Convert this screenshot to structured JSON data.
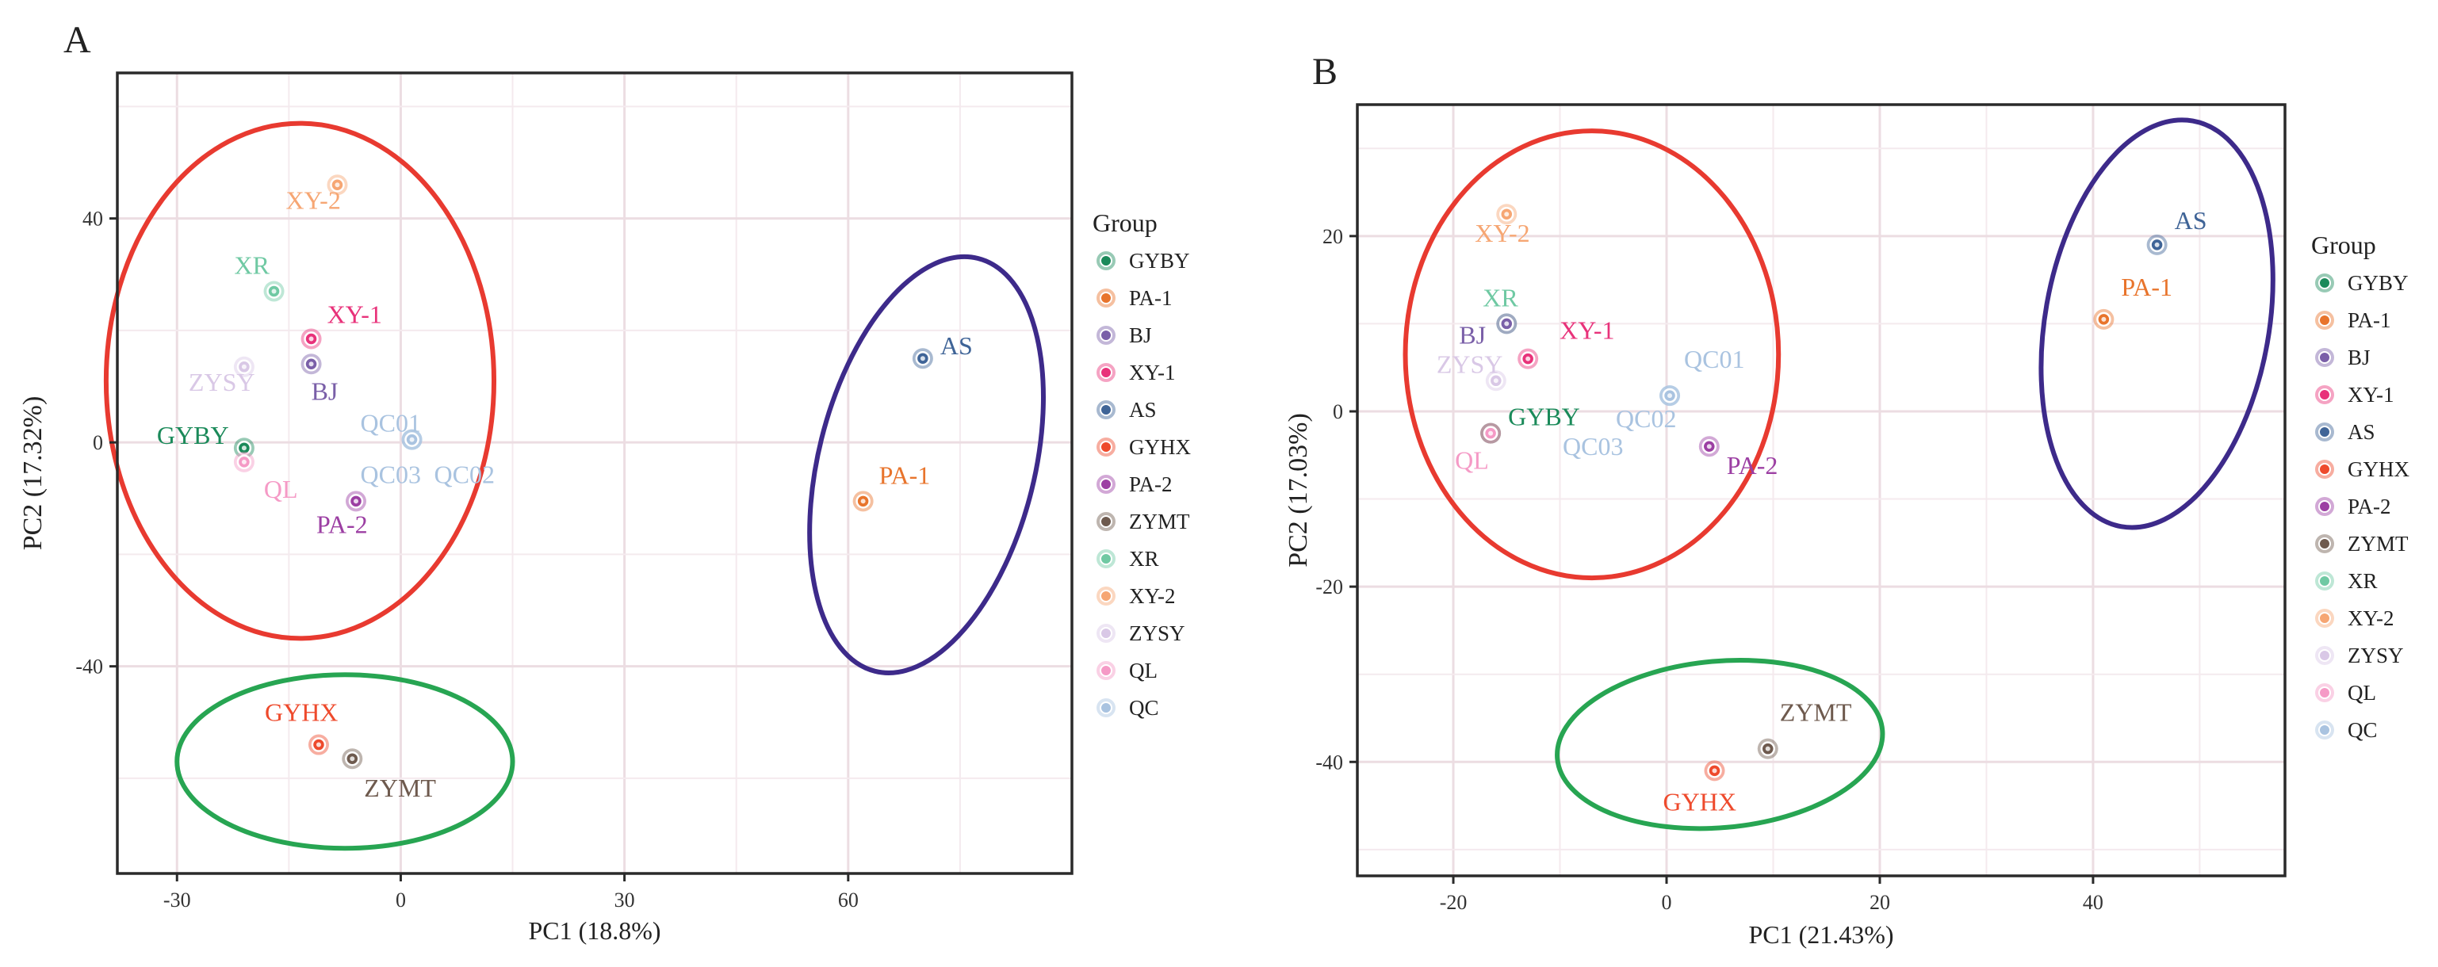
{
  "chart_data": [
    {
      "panel": "A",
      "type": "scatter",
      "xlabel": "PC1 (18.8%)",
      "ylabel": "PC2 (17.32%)",
      "xlim": [
        -38,
        90
      ],
      "ylim": [
        -77,
        66
      ],
      "xticks": [
        -30,
        0,
        30,
        60
      ],
      "yticks": [
        -40,
        0,
        40
      ],
      "grid": true,
      "legend_title": "Group",
      "legend": [
        "GYBY",
        "PA-1",
        "BJ",
        "XY-1",
        "AS",
        "GYHX",
        "PA-2",
        "ZYMT",
        "XR",
        "XY-2",
        "ZYSY",
        "QL",
        "QC"
      ],
      "points": [
        {
          "group": "GYBY",
          "label": "GYBY",
          "x": -21,
          "y": -1
        },
        {
          "group": "XR",
          "label": "XR",
          "x": -17,
          "y": 27
        },
        {
          "group": "XY-2",
          "label": "XY-2",
          "x": -8.5,
          "y": 46
        },
        {
          "group": "XY-1",
          "label": "XY-1",
          "x": -12,
          "y": 18.5
        },
        {
          "group": "BJ",
          "label": "BJ",
          "x": -12,
          "y": 14
        },
        {
          "group": "ZYSY",
          "label": "ZYSY",
          "x": -21,
          "y": 13.5
        },
        {
          "group": "QL",
          "label": "QL",
          "x": -21,
          "y": -3.5
        },
        {
          "group": "PA-2",
          "label": "PA-2",
          "x": -6,
          "y": -10.5
        },
        {
          "group": "QC",
          "label": "QC01",
          "x": 1.5,
          "y": 0.5
        },
        {
          "group": "QC",
          "label": "QC02",
          "x": 1.5,
          "y": 0.5
        },
        {
          "group": "QC",
          "label": "QC03",
          "x": 1.5,
          "y": 0.5
        },
        {
          "group": "AS",
          "label": "AS",
          "x": 70,
          "y": 15
        },
        {
          "group": "PA-1",
          "label": "PA-1",
          "x": 62,
          "y": -10.5
        },
        {
          "group": "GYHX",
          "label": "GYHX",
          "x": -11,
          "y": -54
        },
        {
          "group": "ZYMT",
          "label": "ZYMT",
          "x": -6.5,
          "y": -56.5
        }
      ]
    },
    {
      "panel": "B",
      "type": "scatter",
      "xlabel": "PC1 (21.43%)",
      "ylabel": "PC2 (17.03%)",
      "xlim": [
        -29,
        58
      ],
      "ylim": [
        -53,
        35
      ],
      "xticks": [
        -20,
        0,
        20,
        40
      ],
      "yticks": [
        -40,
        -20,
        0,
        20
      ],
      "grid": true,
      "legend_title": "Group",
      "legend": [
        "GYBY",
        "PA-1",
        "BJ",
        "XY-1",
        "AS",
        "GYHX",
        "PA-2",
        "ZYMT",
        "XR",
        "XY-2",
        "ZYSY",
        "QL",
        "QC"
      ],
      "points": [
        {
          "group": "XY-2",
          "label": "XY-2",
          "x": -15,
          "y": 22.5
        },
        {
          "group": "XR",
          "label": "XR",
          "x": -15,
          "y": 10
        },
        {
          "group": "BJ",
          "label": "BJ",
          "x": -15,
          "y": 10
        },
        {
          "group": "XY-1",
          "label": "XY-1",
          "x": -13,
          "y": 6
        },
        {
          "group": "ZYSY",
          "label": "ZYSY",
          "x": -16,
          "y": 3.5
        },
        {
          "group": "GYBY",
          "label": "GYBY",
          "x": -16.5,
          "y": -2.5
        },
        {
          "group": "ZYMT",
          "label": "",
          "x": -16.5,
          "y": -2.5
        },
        {
          "group": "QL",
          "label": "QL",
          "x": -16.5,
          "y": -2.5
        },
        {
          "group": "QC",
          "label": "QC01",
          "x": 0.3,
          "y": 1.8
        },
        {
          "group": "QC",
          "label": "QC02",
          "x": 0.3,
          "y": 1.8
        },
        {
          "group": "QC",
          "label": "QC03",
          "x": 0.3,
          "y": 1.8
        },
        {
          "group": "PA-2",
          "label": "PA-2",
          "x": 4,
          "y": -4
        },
        {
          "group": "AS",
          "label": "AS",
          "x": 46,
          "y": 19
        },
        {
          "group": "PA-1",
          "label": "PA-1",
          "x": 41,
          "y": 10.5
        },
        {
          "group": "ZYMT",
          "label": "ZYMT",
          "x": 9.5,
          "y": -38.5
        },
        {
          "group": "GYHX",
          "label": "GYHX",
          "x": 4.5,
          "y": -41
        }
      ]
    }
  ],
  "colors": {
    "GYBY": "#1b8a5a",
    "PA-1": "#e8742c",
    "BJ": "#7a5fa8",
    "XY-1": "#e8327a",
    "AS": "#3f6497",
    "GYHX": "#ee4a2c",
    "PA-2": "#9c3fa3",
    "ZYMT": "#6e5a4e",
    "XR": "#6fc9a3",
    "XY-2": "#f6a673",
    "ZYSY": "#d9c8e6",
    "QL": "#f59ac6",
    "QC": "#a9c3e0",
    "ellipse_red": "#e83a30",
    "ellipse_purple": "#3d2a8a",
    "ellipse_green": "#27a552"
  }
}
